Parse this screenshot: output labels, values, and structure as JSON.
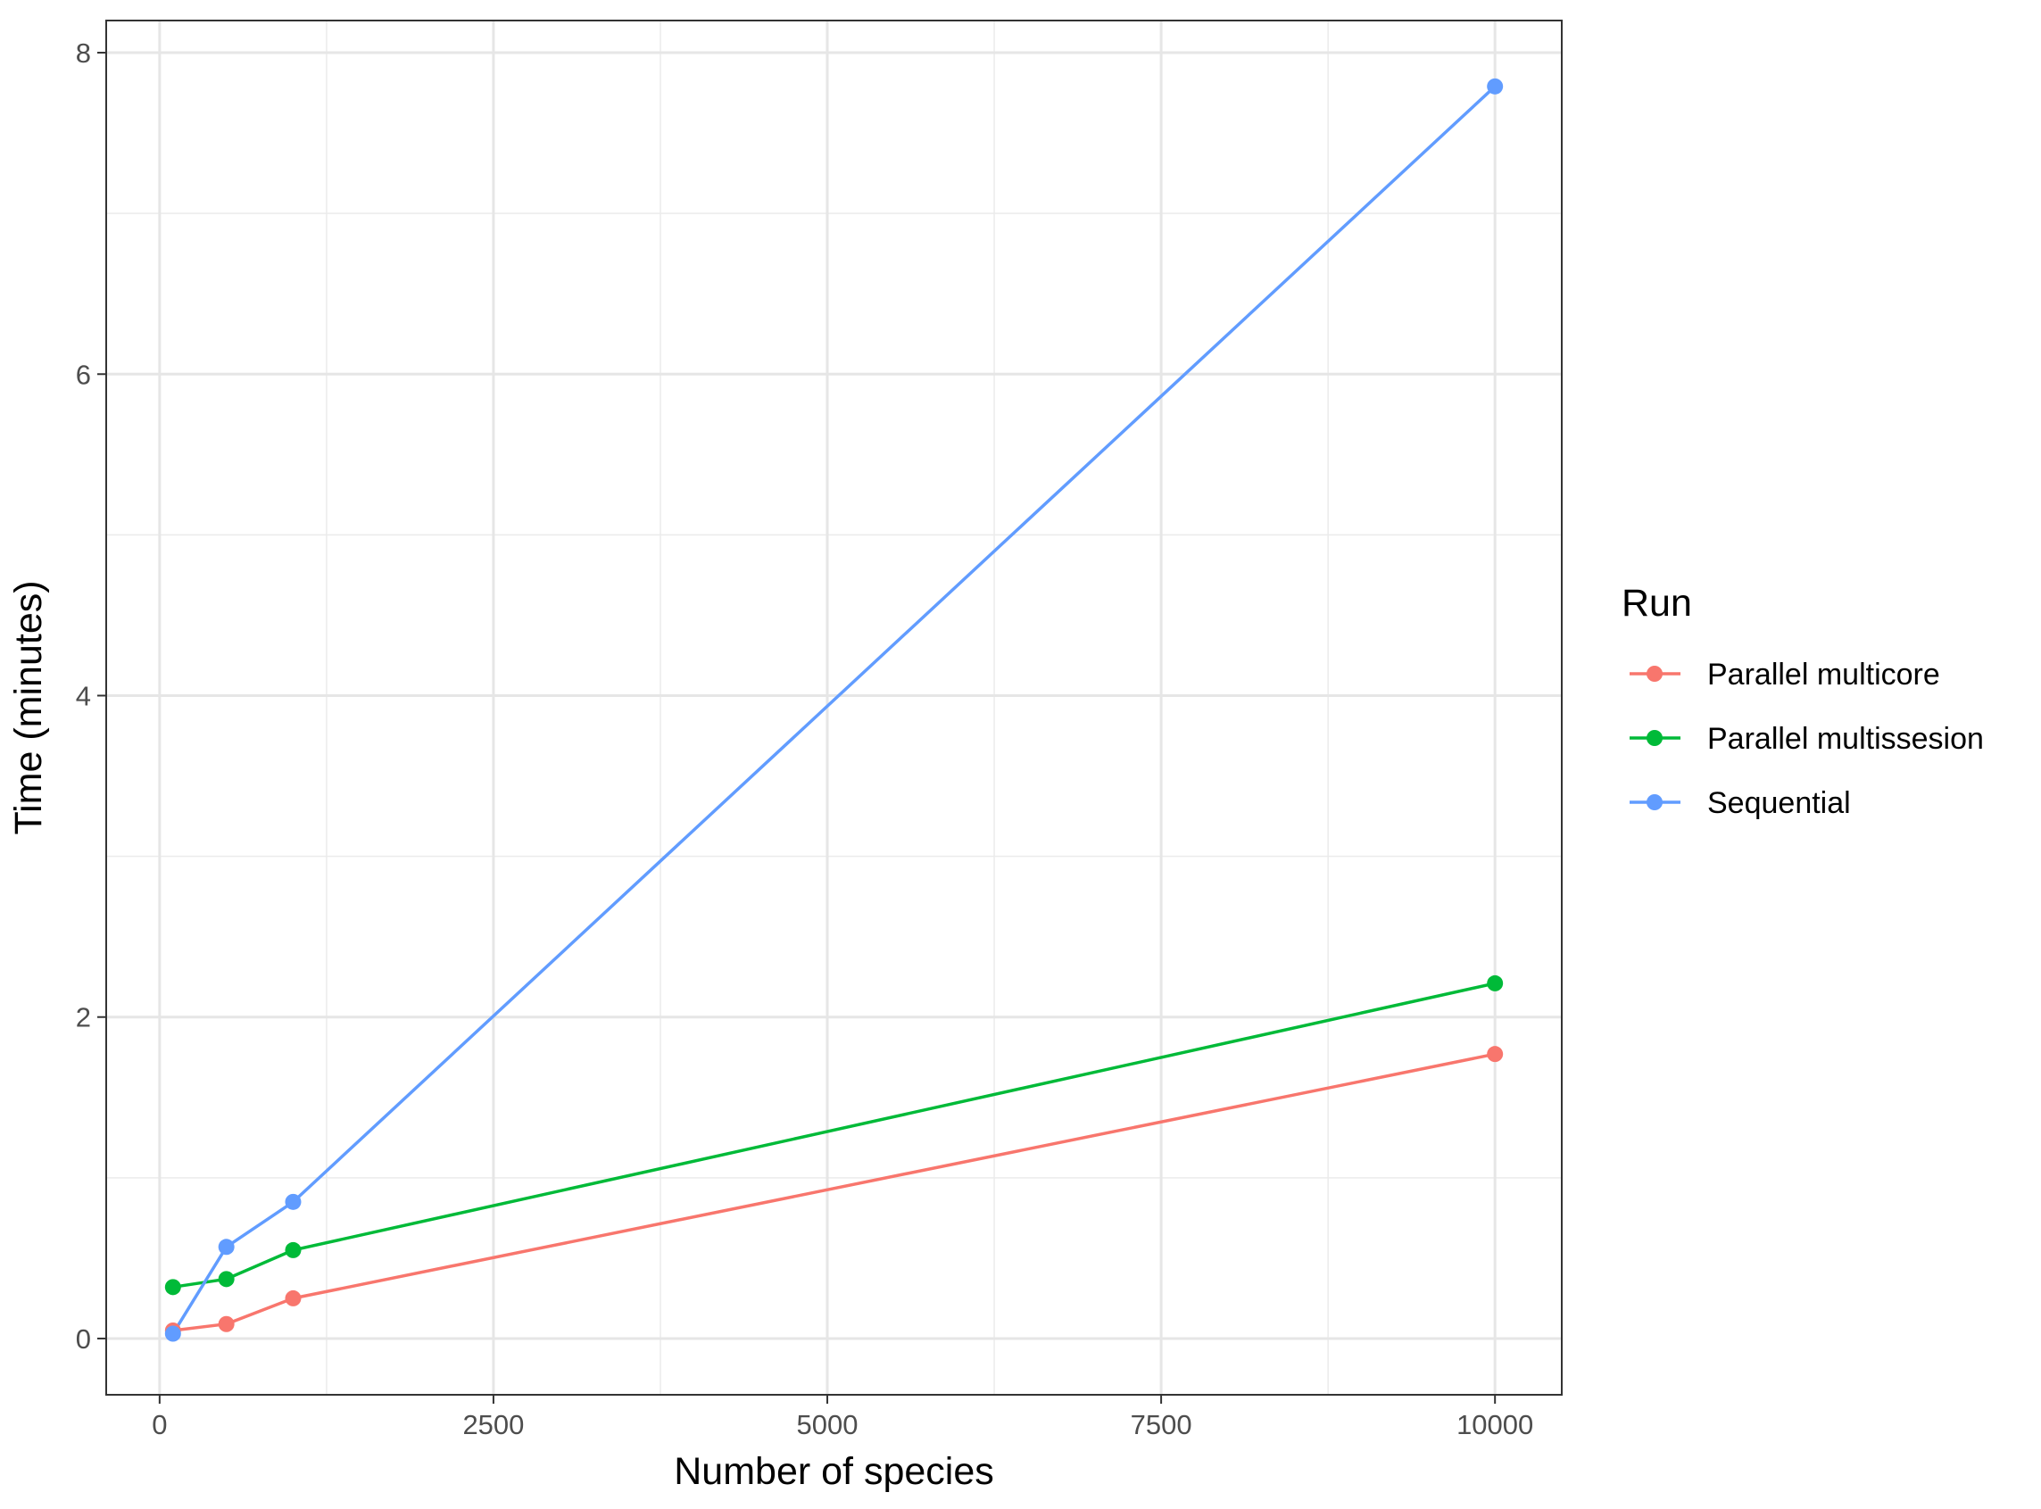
{
  "chart_data": {
    "type": "line",
    "xlabel": "Number of species",
    "ylabel": "Time (minutes)",
    "xlim": [
      -400,
      10500
    ],
    "ylim": [
      -0.35,
      8.2
    ],
    "xticks": [
      0,
      2500,
      5000,
      7500,
      10000
    ],
    "xtick_labels": [
      "0",
      "2500",
      "5000",
      "7500",
      "10000"
    ],
    "yticks": [
      0,
      2,
      4,
      6,
      8
    ],
    "ytick_labels": [
      "0",
      "2",
      "4",
      "6",
      "8"
    ],
    "x_minor_ticks": [
      1250,
      3750,
      6250,
      8750
    ],
    "y_minor_ticks": [
      1,
      3,
      5,
      7
    ],
    "grid": true,
    "legend": {
      "title": "Run",
      "position": "right"
    },
    "series": [
      {
        "name": "Parallel multicore",
        "color": "#F8766D",
        "x": [
          100,
          500,
          1000,
          10000
        ],
        "y": [
          0.05,
          0.09,
          0.25,
          1.77
        ]
      },
      {
        "name": "Parallel multissesion",
        "color": "#00BA38",
        "x": [
          100,
          500,
          1000,
          10000
        ],
        "y": [
          0.32,
          0.37,
          0.55,
          2.21
        ]
      },
      {
        "name": "Sequential",
        "color": "#619CFF",
        "x": [
          100,
          500,
          1000,
          10000
        ],
        "y": [
          0.03,
          0.57,
          0.85,
          7.79
        ]
      }
    ]
  }
}
